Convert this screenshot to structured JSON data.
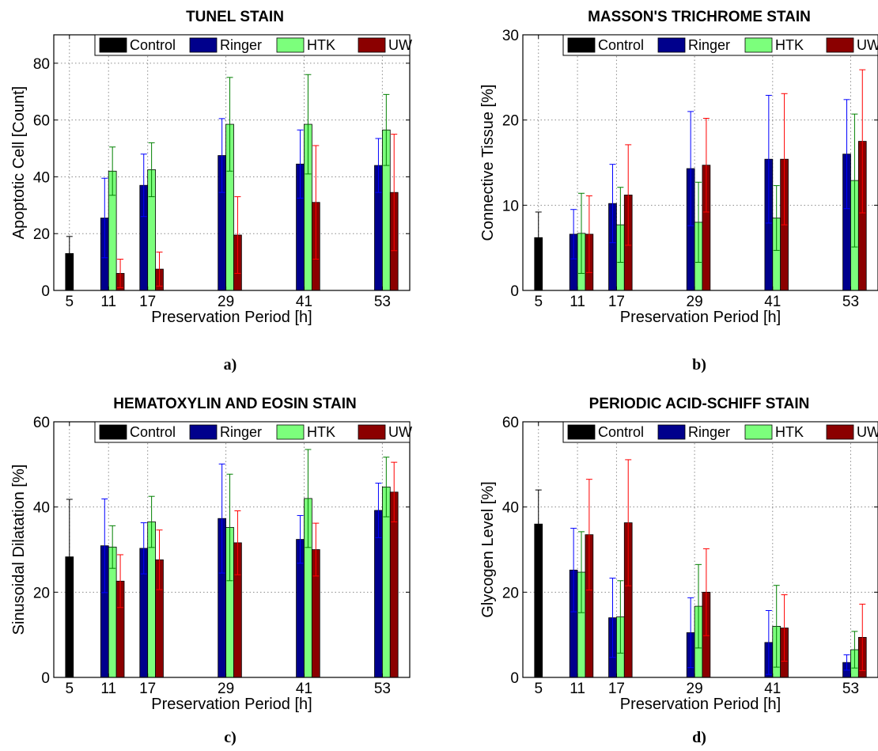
{
  "series_colors": {
    "Control": "#000000",
    "Ringer": "#00008c",
    "HTK": "#7cff7c",
    "UW": "#8b0000"
  },
  "errorbar_colors": {
    "Control": "#000000",
    "Ringer": "#0000ff",
    "HTK": "#008000",
    "UW": "#ff0000"
  },
  "chart_data": [
    {
      "type": "bar",
      "title": "TUNEL STAIN",
      "panel_label": "a)",
      "xlabel": "Preservation Period [h]",
      "ylabel": "Apoptotic Cell [Count]",
      "ylim": [
        0,
        90
      ],
      "yticks": [
        0,
        20,
        40,
        60,
        80
      ],
      "categories": [
        "5",
        "11",
        "17",
        "29",
        "41",
        "53"
      ],
      "legend": [
        "Control",
        "Ringer",
        "HTK",
        "UW"
      ],
      "legend_position": "top-right",
      "grid": true,
      "series": [
        {
          "name": "Control",
          "values": [
            13,
            null,
            null,
            null,
            null,
            null
          ],
          "err": [
            6,
            null,
            null,
            null,
            null,
            null
          ]
        },
        {
          "name": "Ringer",
          "values": [
            null,
            25.5,
            37,
            47.5,
            44.5,
            44
          ],
          "err": [
            null,
            14,
            11,
            13,
            12,
            9.5
          ]
        },
        {
          "name": "HTK",
          "values": [
            null,
            42,
            42.5,
            58.5,
            58.5,
            56.5
          ],
          "err": [
            null,
            8.5,
            9.5,
            16.5,
            17.5,
            12.5
          ]
        },
        {
          "name": "UW",
          "values": [
            null,
            6,
            7.5,
            19.5,
            31,
            34.5
          ],
          "err": [
            null,
            5,
            6,
            13.5,
            20,
            20.5
          ]
        }
      ]
    },
    {
      "type": "bar",
      "title": "MASSON'S TRICHROME STAIN",
      "panel_label": "b)",
      "xlabel": "Preservation Period [h]",
      "ylabel": "Connective Tissue [%]",
      "ylim": [
        0,
        30
      ],
      "yticks": [
        0,
        10,
        20,
        30
      ],
      "categories": [
        "5",
        "11",
        "17",
        "29",
        "41",
        "53"
      ],
      "legend": [
        "Control",
        "Ringer",
        "HTK",
        "UW"
      ],
      "legend_position": "top-right",
      "grid": true,
      "series": [
        {
          "name": "Control",
          "values": [
            6.2,
            null,
            null,
            null,
            null,
            null
          ],
          "err": [
            3,
            null,
            null,
            null,
            null,
            null
          ]
        },
        {
          "name": "Ringer",
          "values": [
            null,
            6.6,
            10.2,
            14.3,
            15.4,
            16
          ],
          "err": [
            null,
            2.9,
            4.6,
            6.7,
            7.5,
            6.4
          ]
        },
        {
          "name": "HTK",
          "values": [
            null,
            6.7,
            7.7,
            8,
            8.5,
            12.9
          ],
          "err": [
            null,
            4.7,
            4.4,
            4.7,
            3.8,
            7.8
          ]
        },
        {
          "name": "UW",
          "values": [
            null,
            6.6,
            11.2,
            14.7,
            15.4,
            17.5
          ],
          "err": [
            null,
            4.5,
            5.9,
            5.5,
            7.7,
            8.4
          ]
        }
      ]
    },
    {
      "type": "bar",
      "title": "HEMATOXYLIN AND EOSIN STAIN",
      "panel_label": "c)",
      "xlabel": "Preservation Period [h]",
      "ylabel": "Sinusoidal Dilatation [%]",
      "ylim": [
        0,
        60
      ],
      "yticks": [
        0,
        20,
        40,
        60
      ],
      "categories": [
        "5",
        "11",
        "17",
        "29",
        "41",
        "53"
      ],
      "legend": [
        "Control",
        "Ringer",
        "HTK",
        "UW"
      ],
      "legend_position": "top-right",
      "grid": true,
      "series": [
        {
          "name": "Control",
          "values": [
            28.3,
            null,
            null,
            null,
            null,
            null
          ],
          "err": [
            13.5,
            null,
            null,
            null,
            null,
            null
          ]
        },
        {
          "name": "Ringer",
          "values": [
            null,
            30.9,
            30.3,
            37.3,
            32.4,
            39.2
          ],
          "err": [
            null,
            11,
            6,
            12.8,
            5.6,
            6.4
          ]
        },
        {
          "name": "HTK",
          "values": [
            null,
            30.6,
            36.5,
            35.2,
            42,
            44.7
          ],
          "err": [
            null,
            5,
            6,
            12.5,
            11.5,
            7
          ]
        },
        {
          "name": "UW",
          "values": [
            null,
            22.6,
            27.6,
            31.6,
            30,
            43.5
          ],
          "err": [
            null,
            6.2,
            7,
            7.5,
            6.2,
            7
          ]
        }
      ]
    },
    {
      "type": "bar",
      "title": "PERIODIC ACID-SCHIFF STAIN",
      "panel_label": "d)",
      "xlabel": "Preservation Period [h]",
      "ylabel": "Glycogen Level [%]",
      "ylim": [
        0,
        60
      ],
      "yticks": [
        0,
        20,
        40,
        60
      ],
      "categories": [
        "5",
        "11",
        "17",
        "29",
        "41",
        "53"
      ],
      "legend": [
        "Control",
        "Ringer",
        "HTK",
        "UW"
      ],
      "legend_position": "top-right",
      "grid": true,
      "series": [
        {
          "name": "Control",
          "values": [
            36,
            null,
            null,
            null,
            null,
            null
          ],
          "err": [
            8,
            null,
            null,
            null,
            null,
            null
          ]
        },
        {
          "name": "Ringer",
          "values": [
            null,
            25.2,
            14,
            10.5,
            8.2,
            3.5
          ],
          "err": [
            null,
            9.8,
            9.3,
            8.2,
            7.5,
            1.8
          ]
        },
        {
          "name": "HTK",
          "values": [
            null,
            24.7,
            14.2,
            16.7,
            12,
            6.5
          ],
          "err": [
            null,
            9.5,
            8.5,
            9.8,
            9.6,
            4.3
          ]
        },
        {
          "name": "UW",
          "values": [
            null,
            33.5,
            36.3,
            20,
            11.6,
            9.4
          ],
          "err": [
            null,
            13,
            14.8,
            10.2,
            7.8,
            7.8
          ]
        }
      ]
    }
  ]
}
